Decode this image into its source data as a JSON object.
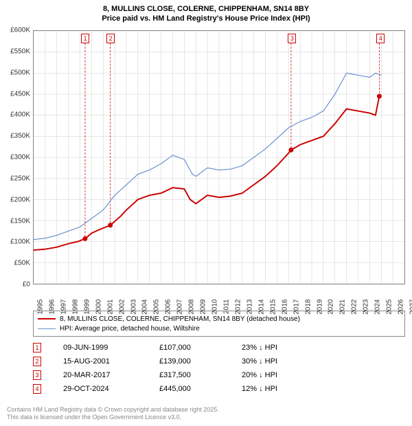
{
  "title_line1": "8, MULLINS CLOSE, COLERNE, CHIPPENHAM, SN14 8BY",
  "title_line2": "Price paid vs. HM Land Registry's House Price Index (HPI)",
  "chart": {
    "type": "line",
    "background_color": "#ffffff",
    "grid_color": "#cccccc",
    "border_color": "#888888",
    "x_range": [
      1995,
      2027
    ],
    "y_range": [
      0,
      600000
    ],
    "y_ticks": [
      0,
      50000,
      100000,
      150000,
      200000,
      250000,
      300000,
      350000,
      400000,
      450000,
      500000,
      550000,
      600000
    ],
    "y_tick_labels": [
      "£0",
      "£50K",
      "£100K",
      "£150K",
      "£200K",
      "£250K",
      "£300K",
      "£350K",
      "£400K",
      "£450K",
      "£500K",
      "£550K",
      "£600K"
    ],
    "x_ticks": [
      1995,
      1996,
      1997,
      1998,
      1999,
      2000,
      2001,
      2002,
      2003,
      2004,
      2005,
      2006,
      2007,
      2008,
      2009,
      2010,
      2011,
      2012,
      2013,
      2014,
      2015,
      2016,
      2017,
      2018,
      2019,
      2020,
      2021,
      2022,
      2023,
      2024,
      2025,
      2026,
      2027
    ],
    "series": [
      {
        "id": "price_paid",
        "label": "8, MULLINS CLOSE, COLERNE, CHIPPENHAM, SN14 8BY (detached house)",
        "color": "#cc0000",
        "line_width": 2,
        "data": [
          [
            1995.0,
            80000
          ],
          [
            1996.0,
            82000
          ],
          [
            1997.0,
            87000
          ],
          [
            1998.0,
            95000
          ],
          [
            1998.8,
            100000
          ],
          [
            1999.44,
            107000
          ],
          [
            2000.0,
            120000
          ],
          [
            2000.8,
            130000
          ],
          [
            2001.62,
            139000
          ],
          [
            2002.5,
            160000
          ],
          [
            2003.0,
            175000
          ],
          [
            2004.0,
            200000
          ],
          [
            2005.0,
            210000
          ],
          [
            2006.0,
            215000
          ],
          [
            2007.0,
            228000
          ],
          [
            2008.0,
            225000
          ],
          [
            2008.5,
            200000
          ],
          [
            2009.0,
            190000
          ],
          [
            2010.0,
            210000
          ],
          [
            2011.0,
            205000
          ],
          [
            2012.0,
            208000
          ],
          [
            2013.0,
            215000
          ],
          [
            2014.0,
            235000
          ],
          [
            2015.0,
            255000
          ],
          [
            2016.0,
            280000
          ],
          [
            2017.0,
            310000
          ],
          [
            2017.22,
            317500
          ],
          [
            2018.0,
            330000
          ],
          [
            2019.0,
            340000
          ],
          [
            2020.0,
            350000
          ],
          [
            2021.0,
            380000
          ],
          [
            2022.0,
            415000
          ],
          [
            2023.0,
            410000
          ],
          [
            2024.0,
            405000
          ],
          [
            2024.5,
            400000
          ],
          [
            2024.83,
            445000
          ]
        ],
        "markers": [
          {
            "n": 1,
            "x": 1999.44,
            "y": 107000
          },
          {
            "n": 2,
            "x": 2001.62,
            "y": 139000
          },
          {
            "n": 3,
            "x": 2017.22,
            "y": 317500
          },
          {
            "n": 4,
            "x": 2024.83,
            "y": 445000
          }
        ]
      },
      {
        "id": "hpi",
        "label": "HPI: Average price, detached house, Wiltshire",
        "color": "#6a8fd0",
        "line_width": 1.2,
        "data": [
          [
            1995.0,
            105000
          ],
          [
            1996.0,
            108000
          ],
          [
            1997.0,
            115000
          ],
          [
            1998.0,
            125000
          ],
          [
            1999.0,
            135000
          ],
          [
            2000.0,
            155000
          ],
          [
            2001.0,
            175000
          ],
          [
            2002.0,
            210000
          ],
          [
            2003.0,
            235000
          ],
          [
            2004.0,
            260000
          ],
          [
            2005.0,
            270000
          ],
          [
            2006.0,
            285000
          ],
          [
            2007.0,
            305000
          ],
          [
            2008.0,
            295000
          ],
          [
            2008.7,
            260000
          ],
          [
            2009.0,
            255000
          ],
          [
            2010.0,
            275000
          ],
          [
            2011.0,
            270000
          ],
          [
            2012.0,
            272000
          ],
          [
            2013.0,
            280000
          ],
          [
            2014.0,
            300000
          ],
          [
            2015.0,
            320000
          ],
          [
            2016.0,
            345000
          ],
          [
            2017.0,
            370000
          ],
          [
            2018.0,
            385000
          ],
          [
            2019.0,
            395000
          ],
          [
            2020.0,
            410000
          ],
          [
            2021.0,
            450000
          ],
          [
            2022.0,
            500000
          ],
          [
            2023.0,
            495000
          ],
          [
            2024.0,
            490000
          ],
          [
            2024.5,
            500000
          ],
          [
            2025.0,
            495000
          ]
        ]
      }
    ],
    "marker_color": "#cc0000",
    "marker_top_y": 18,
    "label_fontsize": 10
  },
  "legend": {
    "items": [
      {
        "color": "#cc0000",
        "width": 2,
        "label": "8, MULLINS CLOSE, COLERNE, CHIPPENHAM, SN14 8BY (detached house)"
      },
      {
        "color": "#6a8fd0",
        "width": 1.2,
        "label": "HPI: Average price, detached house, Wiltshire"
      }
    ]
  },
  "transactions": [
    {
      "n": "1",
      "date": "09-JUN-1999",
      "price": "£107,000",
      "diff": "23% ↓ HPI"
    },
    {
      "n": "2",
      "date": "15-AUG-2001",
      "price": "£139,000",
      "diff": "30% ↓ HPI"
    },
    {
      "n": "3",
      "date": "20-MAR-2017",
      "price": "£317,500",
      "diff": "20% ↓ HPI"
    },
    {
      "n": "4",
      "date": "29-OCT-2024",
      "price": "£445,000",
      "diff": "12% ↓ HPI"
    }
  ],
  "footer_line1": "Contains HM Land Registry data © Crown copyright and database right 2025.",
  "footer_line2": "This data is licensed under the Open Government Licence v3.0."
}
